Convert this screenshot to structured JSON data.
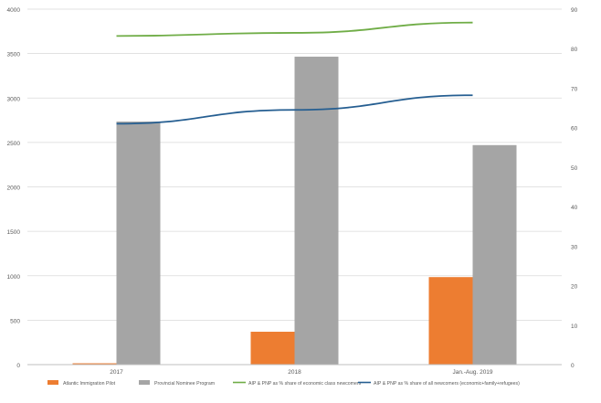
{
  "chart_data": {
    "type": "bar",
    "categories": [
      "2017",
      "2018",
      "Jan.-Aug. 2019"
    ],
    "series": [
      {
        "name": "Atlantic Immigration Pilot",
        "type": "bar",
        "axis": "left",
        "color": "#ED7D31",
        "values": [
          15,
          370,
          985
        ]
      },
      {
        "name": "Provincial Nominee Program",
        "type": "bar",
        "axis": "left",
        "color": "#A5A5A5",
        "values": [
          2735,
          3465,
          2470
        ]
      },
      {
        "name": "AIP & PNP as % share of economic class newcomers",
        "type": "line",
        "axis": "right",
        "color": "#70AD47",
        "values": [
          83.2,
          84.0,
          86.6
        ]
      },
      {
        "name": "AIP & PNP as % share of all newcomers (economic+family+refugees)",
        "type": "line",
        "axis": "right",
        "color": "#255E91",
        "values": [
          61.0,
          64.5,
          68.2
        ]
      }
    ],
    "y_left": {
      "lim": [
        0,
        4000
      ],
      "ticks": [
        "0",
        "500",
        "1000",
        "1500",
        "2000",
        "2500",
        "3000",
        "3500",
        "4000"
      ]
    },
    "y_right": {
      "lim": [
        0,
        90
      ],
      "ticks": [
        "0",
        "10",
        "20",
        "30",
        "40",
        "50",
        "60",
        "70",
        "80",
        "90"
      ]
    },
    "grid": true,
    "legend": "bottom"
  }
}
